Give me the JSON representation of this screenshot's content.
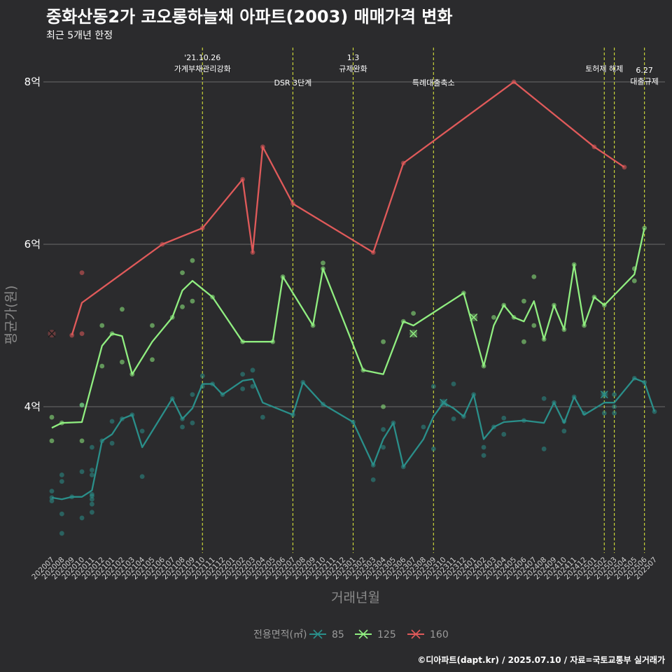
{
  "header": {
    "title": "중화산동2가 코오롱하늘채 아파트(2003) 매매가격 변화",
    "subtitle": "최근 5개년 한정"
  },
  "footer": {
    "credit": "©디아파트(dapt.kr) / 2025.07.10 / 자료=국토교통부 실거래가"
  },
  "colors": {
    "background": "#2b2b2d",
    "s85": "#2a8f8a",
    "s125": "#90ee80",
    "s160": "#e05a5a",
    "event_line": "#d4e03a",
    "grid": "#6b6b6b"
  },
  "chart_data": {
    "type": "line",
    "title": "중화산동2가 코오롱하늘채 아파트(2003) 매매가격 변화",
    "subtitle": "최근 5개년 한정",
    "xlabel": "거래년월",
    "ylabel": "평균가(원)",
    "ylim": [
      2.2,
      8.6
    ],
    "y_ticks": [
      4,
      6,
      8
    ],
    "y_tick_labels": [
      "4억",
      "6억",
      "8억"
    ],
    "grid": "horizontal",
    "categories": [
      "202007",
      "202008",
      "202009",
      "202010",
      "202011",
      "202012",
      "202101",
      "202102",
      "202103",
      "202104",
      "202105",
      "202106",
      "202107",
      "202108",
      "202109",
      "202110",
      "202111",
      "202112",
      "202201",
      "202202",
      "202203",
      "202204",
      "202205",
      "202206",
      "202207",
      "202208",
      "202209",
      "202210",
      "202211",
      "202212",
      "202301",
      "202302",
      "202303",
      "202304",
      "202305",
      "202306",
      "202307",
      "202308",
      "202309",
      "202310",
      "202311",
      "202312",
      "202401",
      "202402",
      "202403",
      "202404",
      "202405",
      "202406",
      "202407",
      "202408",
      "202409",
      "202410",
      "202411",
      "202412",
      "202501",
      "202502",
      "202503",
      "202504",
      "202505",
      "202506",
      "202507"
    ],
    "legend": {
      "title": "전용면적(㎡)",
      "entries": [
        "85",
        "125",
        "160"
      ],
      "position": "bottom"
    },
    "events": [
      {
        "month": "202110",
        "label": "'21.10.26\n가계부채관리강화",
        "row": 0
      },
      {
        "month": "202207",
        "label": "DSR 3단계",
        "row": 1
      },
      {
        "month": "202301",
        "label": "1.3\n규제완화",
        "row": 0
      },
      {
        "month": "202309",
        "label": "특례대출축소",
        "row": 1
      },
      {
        "month": "202502",
        "label": "토허제 해제",
        "row": 0
      },
      {
        "month": "202503",
        "label": "",
        "row": 0
      },
      {
        "month": "202506",
        "label": "6.27\n대출규제",
        "row": 2
      }
    ],
    "series": [
      {
        "name": "85",
        "line": [
          [
            "202007",
            2.88
          ],
          [
            "202008",
            2.86
          ],
          [
            "202009",
            2.89
          ],
          [
            "202010",
            2.89
          ],
          [
            "202011",
            2.97
          ],
          [
            "202012",
            3.58
          ],
          [
            "202101",
            3.66
          ],
          [
            "202102",
            3.85
          ],
          [
            "202103",
            3.9
          ],
          [
            "202104",
            3.5
          ],
          [
            "202107",
            4.1
          ],
          [
            "202108",
            3.85
          ],
          [
            "202109",
            3.98
          ],
          [
            "202110",
            4.28
          ],
          [
            "202111",
            4.28
          ],
          [
            "202112",
            4.15
          ],
          [
            "202202",
            4.32
          ],
          [
            "202203",
            4.34
          ],
          [
            "202204",
            4.05
          ],
          [
            "202207",
            3.9
          ],
          [
            "202208",
            4.3
          ],
          [
            "202210",
            4.03
          ],
          [
            "202301",
            3.81
          ],
          [
            "202303",
            3.28
          ],
          [
            "202304",
            3.6
          ],
          [
            "202305",
            3.8
          ],
          [
            "202306",
            3.26
          ],
          [
            "202308",
            3.6
          ],
          [
            "202309",
            3.88
          ],
          [
            "202310",
            4.05
          ],
          [
            "202311",
            3.98
          ],
          [
            "202312",
            3.88
          ],
          [
            "202401",
            4.15
          ],
          [
            "202402",
            3.6
          ],
          [
            "202403",
            3.75
          ],
          [
            "202404",
            3.81
          ],
          [
            "202406",
            3.83
          ],
          [
            "202408",
            3.8
          ],
          [
            "202409",
            4.05
          ],
          [
            "202410",
            3.8
          ],
          [
            "202411",
            4.12
          ],
          [
            "202412",
            3.9
          ],
          [
            "202502",
            4.05
          ],
          [
            "202503",
            4.05
          ],
          [
            "202505",
            4.35
          ],
          [
            "202506",
            4.3
          ],
          [
            "202507",
            3.94
          ]
        ],
        "points": [
          [
            "202007",
            2.96
          ],
          [
            "202007",
            2.88
          ],
          [
            "202007",
            2.84
          ],
          [
            "202008",
            3.16
          ],
          [
            "202008",
            3.08
          ],
          [
            "202008",
            2.68
          ],
          [
            "202008",
            2.44
          ],
          [
            "202009",
            2.89
          ],
          [
            "202010",
            2.63
          ],
          [
            "202010",
            3.2
          ],
          [
            "202010",
            4.02
          ],
          [
            "202011",
            3.5
          ],
          [
            "202011",
            3.22
          ],
          [
            "202011",
            3.16
          ],
          [
            "202011",
            2.92
          ],
          [
            "202011",
            2.9
          ],
          [
            "202011",
            2.86
          ],
          [
            "202011",
            2.8
          ],
          [
            "202011",
            2.7
          ],
          [
            "202012",
            3.58
          ],
          [
            "202101",
            3.82
          ],
          [
            "202101",
            3.55
          ],
          [
            "202102",
            3.85
          ],
          [
            "202103",
            3.9
          ],
          [
            "202104",
            3.7
          ],
          [
            "202104",
            3.14
          ],
          [
            "202107",
            4.1
          ],
          [
            "202108",
            3.85
          ],
          [
            "202108",
            3.75
          ],
          [
            "202109",
            3.8
          ],
          [
            "202109",
            4.15
          ],
          [
            "202110",
            4.38
          ],
          [
            "202110",
            4.25
          ],
          [
            "202111",
            4.28
          ],
          [
            "202112",
            4.15
          ],
          [
            "202202",
            4.4
          ],
          [
            "202202",
            4.22
          ],
          [
            "202203",
            4.45
          ],
          [
            "202203",
            4.25
          ],
          [
            "202204",
            3.87
          ],
          [
            "202207",
            3.9
          ],
          [
            "202208",
            4.3
          ],
          [
            "202210",
            4.03
          ],
          [
            "202301",
            3.81
          ],
          [
            "202303",
            3.28
          ],
          [
            "202303",
            3.1
          ],
          [
            "202304",
            3.72
          ],
          [
            "202304",
            3.5
          ],
          [
            "202305",
            3.8
          ],
          [
            "202306",
            3.26
          ],
          [
            "202308",
            3.75
          ],
          [
            "202309",
            3.48
          ],
          [
            "202309",
            4.25
          ],
          [
            "202310",
            4.05
          ],
          [
            "202311",
            4.28
          ],
          [
            "202311",
            3.85
          ],
          [
            "202312",
            3.88
          ],
          [
            "202401",
            4.15
          ],
          [
            "202402",
            3.5
          ],
          [
            "202402",
            3.4
          ],
          [
            "202403",
            3.75
          ],
          [
            "202404",
            3.86
          ],
          [
            "202404",
            3.66
          ],
          [
            "202406",
            3.83
          ],
          [
            "202408",
            4.1
          ],
          [
            "202408",
            3.48
          ],
          [
            "202409",
            4.05
          ],
          [
            "202410",
            3.82
          ],
          [
            "202410",
            3.7
          ],
          [
            "202411",
            4.12
          ],
          [
            "202412",
            3.92
          ],
          [
            "202502",
            4.15
          ],
          [
            "202502",
            3.92
          ],
          [
            "202503",
            4.15
          ],
          [
            "202503",
            3.92
          ],
          [
            "202503",
            4.0
          ],
          [
            "202505",
            4.35
          ],
          [
            "202506",
            4.3
          ],
          [
            "202507",
            3.94
          ]
        ],
        "cross": [
          [
            "202310",
            4.05
          ],
          [
            "202502",
            4.15
          ]
        ]
      },
      {
        "name": "125",
        "line": [
          [
            "202007",
            3.74
          ],
          [
            "202008",
            3.8
          ],
          [
            "202010",
            3.81
          ],
          [
            "202012",
            4.75
          ],
          [
            "202101",
            4.9
          ],
          [
            "202102",
            4.87
          ],
          [
            "202103",
            4.4
          ],
          [
            "202105",
            4.8
          ],
          [
            "202107",
            5.1
          ],
          [
            "202108",
            5.43
          ],
          [
            "202109",
            5.55
          ],
          [
            "202111",
            5.35
          ],
          [
            "202202",
            4.8
          ],
          [
            "202205",
            4.8
          ],
          [
            "202206",
            5.6
          ],
          [
            "202209",
            5.0
          ],
          [
            "202210",
            5.7
          ],
          [
            "202302",
            4.45
          ],
          [
            "202304",
            4.4
          ],
          [
            "202306",
            5.05
          ],
          [
            "202307",
            5.0
          ],
          [
            "202312",
            5.4
          ],
          [
            "202402",
            4.5
          ],
          [
            "202403",
            5.0
          ],
          [
            "202404",
            5.25
          ],
          [
            "202405",
            5.1
          ],
          [
            "202406",
            5.05
          ],
          [
            "202407",
            5.3
          ],
          [
            "202408",
            4.83
          ],
          [
            "202409",
            5.25
          ],
          [
            "202410",
            4.95
          ],
          [
            "202411",
            5.75
          ],
          [
            "202412",
            5.0
          ],
          [
            "202501",
            5.35
          ],
          [
            "202502",
            5.25
          ],
          [
            "202505",
            5.63
          ],
          [
            "202506",
            6.2
          ]
        ],
        "points": [
          [
            "202007",
            3.87
          ],
          [
            "202007",
            3.58
          ],
          [
            "202008",
            3.8
          ],
          [
            "202010",
            3.58
          ],
          [
            "202010",
            4.02
          ],
          [
            "202012",
            5.0
          ],
          [
            "202012",
            4.5
          ],
          [
            "202101",
            4.9
          ],
          [
            "202102",
            5.2
          ],
          [
            "202102",
            4.55
          ],
          [
            "202103",
            4.4
          ],
          [
            "202105",
            5.0
          ],
          [
            "202105",
            4.58
          ],
          [
            "202107",
            5.1
          ],
          [
            "202108",
            5.65
          ],
          [
            "202108",
            5.23
          ],
          [
            "202109",
            5.8
          ],
          [
            "202109",
            5.3
          ],
          [
            "202111",
            5.35
          ],
          [
            "202202",
            4.8
          ],
          [
            "202205",
            4.8
          ],
          [
            "202206",
            5.6
          ],
          [
            "202209",
            5.0
          ],
          [
            "202210",
            5.77
          ],
          [
            "202210",
            5.7
          ],
          [
            "202302",
            4.45
          ],
          [
            "202304",
            4.8
          ],
          [
            "202304",
            4.0
          ],
          [
            "202306",
            5.05
          ],
          [
            "202307",
            5.15
          ],
          [
            "202312",
            5.4
          ],
          [
            "202402",
            4.5
          ],
          [
            "202403",
            5.1
          ],
          [
            "202404",
            5.25
          ],
          [
            "202405",
            5.1
          ],
          [
            "202406",
            5.3
          ],
          [
            "202406",
            4.8
          ],
          [
            "202407",
            5.6
          ],
          [
            "202407",
            5.0
          ],
          [
            "202408",
            4.83
          ],
          [
            "202409",
            5.25
          ],
          [
            "202410",
            4.95
          ],
          [
            "202411",
            5.75
          ],
          [
            "202412",
            5.0
          ],
          [
            "202501",
            5.35
          ],
          [
            "202502",
            5.25
          ],
          [
            "202505",
            5.7
          ],
          [
            "202505",
            5.55
          ],
          [
            "202506",
            6.2
          ]
        ],
        "cross": [
          [
            "202307",
            4.9
          ],
          [
            "202401",
            5.1
          ]
        ]
      },
      {
        "name": "160",
        "line": [
          [
            "202009",
            4.88
          ],
          [
            "202010",
            5.28
          ],
          [
            "202106",
            6.0
          ],
          [
            "202110",
            6.2
          ],
          [
            "202202",
            6.8
          ],
          [
            "202203",
            5.9
          ],
          [
            "202204",
            7.2
          ],
          [
            "202207",
            6.5
          ],
          [
            "202303",
            5.9
          ],
          [
            "202306",
            7.0
          ],
          [
            "202405",
            8.0
          ],
          [
            "202501",
            7.2
          ],
          [
            "202504",
            6.95
          ]
        ],
        "points": [
          [
            "202009",
            4.88
          ],
          [
            "202010",
            5.65
          ],
          [
            "202010",
            4.9
          ],
          [
            "202106",
            6.0
          ],
          [
            "202110",
            6.2
          ],
          [
            "202202",
            6.8
          ],
          [
            "202203",
            5.9
          ],
          [
            "202204",
            7.2
          ],
          [
            "202207",
            6.5
          ],
          [
            "202303",
            5.9
          ],
          [
            "202306",
            7.0
          ],
          [
            "202405",
            8.0
          ],
          [
            "202501",
            7.2
          ],
          [
            "202504",
            6.95
          ]
        ],
        "cross": [
          [
            "202007",
            4.9
          ]
        ]
      }
    ]
  }
}
